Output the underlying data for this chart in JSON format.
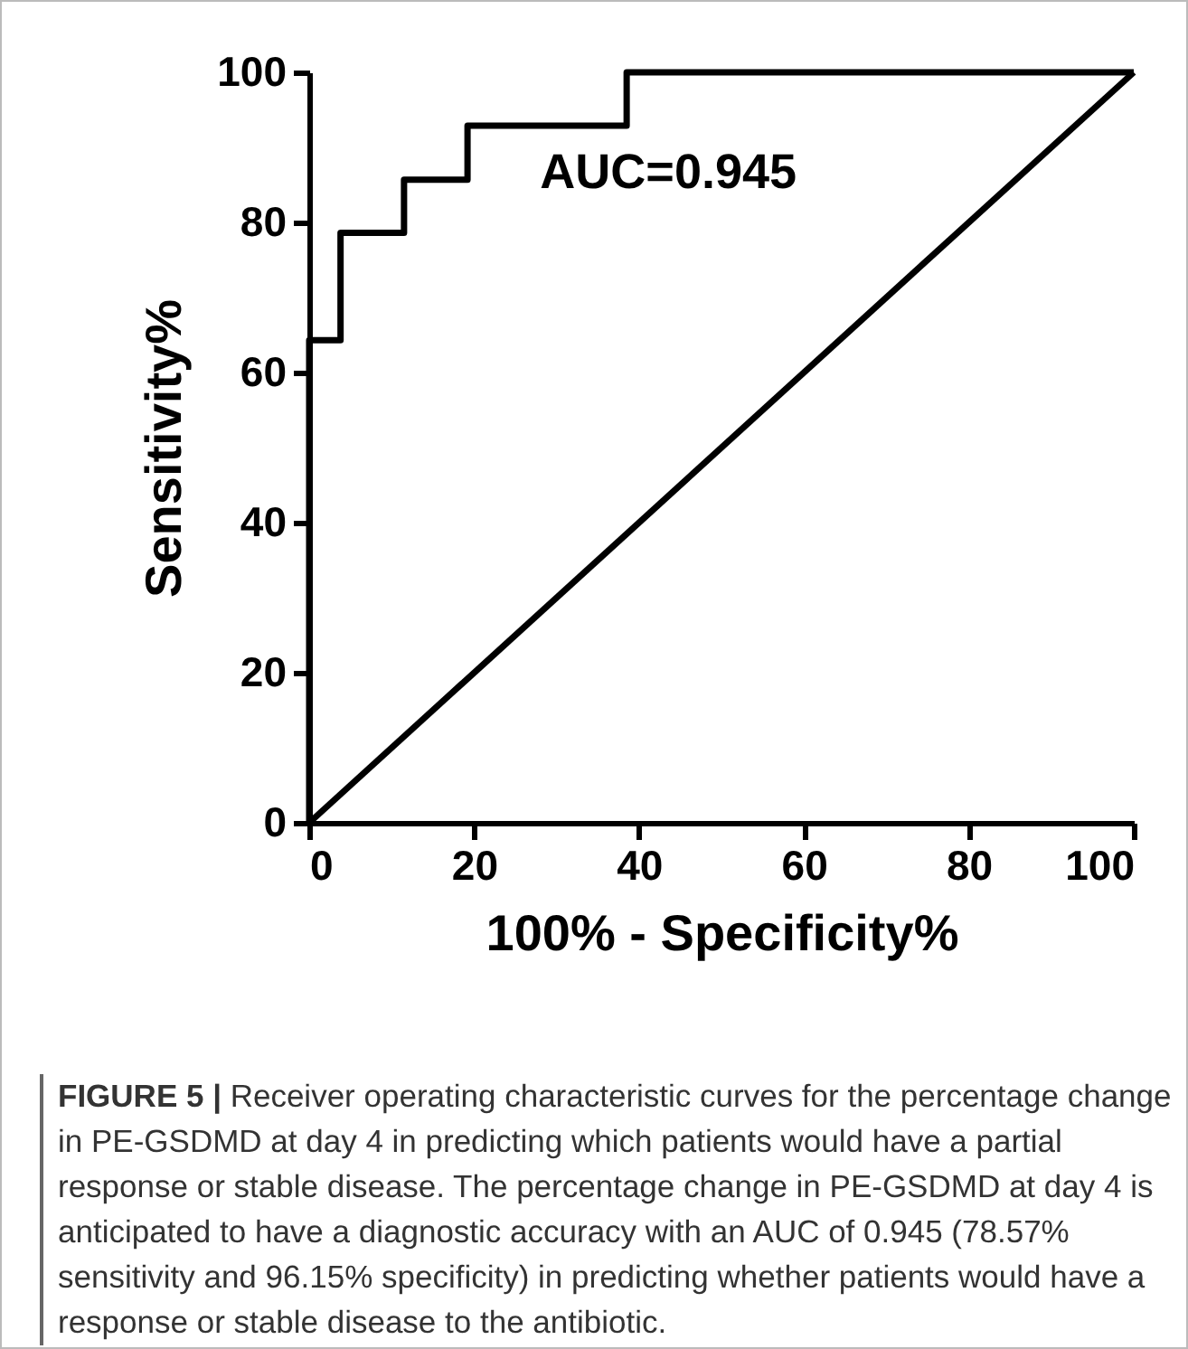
{
  "chart_data": {
    "type": "line",
    "xlabel": "100% - Specificity%",
    "ylabel": "Sensitivity%",
    "xlim": [
      0,
      100
    ],
    "ylim": [
      0,
      100
    ],
    "xticks": [
      0,
      20,
      40,
      60,
      80,
      100
    ],
    "yticks": [
      0,
      20,
      40,
      60,
      80,
      100
    ],
    "grid": false,
    "legend": false,
    "marker": "none",
    "line_style": "solid",
    "series": [
      {
        "color": "#000000",
        "x": [
          0,
          0,
          3.8,
          3.8,
          11.5,
          11.5,
          19.2,
          19.2,
          38.5,
          38.5,
          100
        ],
        "values": [
          0,
          64.3,
          64.3,
          78.6,
          78.6,
          85.7,
          85.7,
          92.9,
          92.9,
          100,
          100
        ]
      },
      {
        "color": "#000000",
        "x": [
          0,
          100
        ],
        "values": [
          0,
          100
        ]
      }
    ],
    "annotations": [
      "AUC=0.945",
      "FIGURE 5 | Receiver operating characteristic curves for the percentage change in PE-GSDMD at day 4 in predicting which patients would have a partial response or stable disease. The percentage change in PE-GSDMD at day 4 is anticipated to have a diagnostic accuracy with an AUC of 0.945 (78.57% sensitivity and 96.15% specificity) in predicting whether patients would have a response or stable disease to the antibiotic."
    ]
  }
}
